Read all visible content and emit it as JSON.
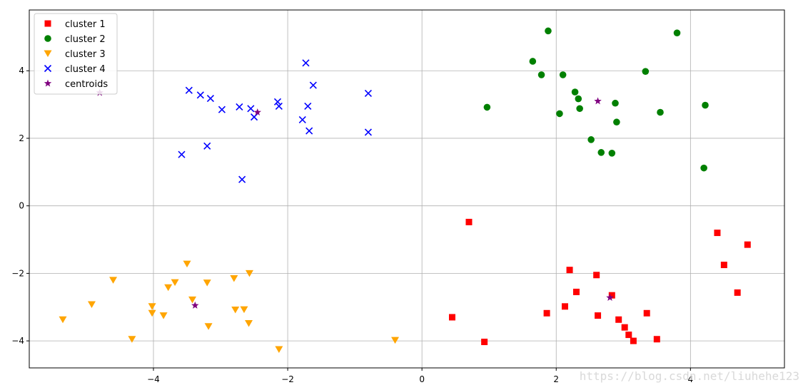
{
  "chart_data": {
    "type": "scatter",
    "xlim": [
      -5.85,
      5.4
    ],
    "ylim": [
      -4.8,
      5.8
    ],
    "xticks": [
      -4,
      -2,
      0,
      2,
      4
    ],
    "yticks": [
      -4,
      -2,
      0,
      2,
      4
    ],
    "x_tick_labels": [
      "−4",
      "−2",
      "0",
      "2",
      "4"
    ],
    "y_tick_labels": [
      "−4",
      "−2",
      "0",
      "2",
      "4"
    ],
    "grid": true,
    "legend_position": "top-left",
    "series": [
      {
        "name": "cluster 1",
        "marker": "square",
        "color": "#ff0000",
        "points": [
          [
            0.45,
            -3.3
          ],
          [
            0.7,
            -0.48
          ],
          [
            0.93,
            -4.03
          ],
          [
            1.86,
            -3.18
          ],
          [
            2.13,
            -2.98
          ],
          [
            2.2,
            -1.9
          ],
          [
            2.3,
            -2.55
          ],
          [
            2.6,
            -2.05
          ],
          [
            2.62,
            -3.25
          ],
          [
            2.83,
            -2.65
          ],
          [
            2.93,
            -3.37
          ],
          [
            3.02,
            -3.6
          ],
          [
            3.08,
            -3.82
          ],
          [
            3.15,
            -4.0
          ],
          [
            3.35,
            -3.18
          ],
          [
            3.5,
            -3.95
          ],
          [
            4.4,
            -0.8
          ],
          [
            4.5,
            -1.75
          ],
          [
            4.7,
            -2.57
          ],
          [
            4.85,
            -1.15
          ]
        ]
      },
      {
        "name": "cluster 2",
        "marker": "circle",
        "color": "#008000",
        "points": [
          [
            0.97,
            2.92
          ],
          [
            1.65,
            4.28
          ],
          [
            1.78,
            3.88
          ],
          [
            1.88,
            5.18
          ],
          [
            2.05,
            2.73
          ],
          [
            2.1,
            3.88
          ],
          [
            2.28,
            3.37
          ],
          [
            2.33,
            3.17
          ],
          [
            2.35,
            2.88
          ],
          [
            2.52,
            1.96
          ],
          [
            2.67,
            1.58
          ],
          [
            2.83,
            1.56
          ],
          [
            2.88,
            3.04
          ],
          [
            2.9,
            2.48
          ],
          [
            3.33,
            3.98
          ],
          [
            3.55,
            2.77
          ],
          [
            3.8,
            5.12
          ],
          [
            4.2,
            1.12
          ],
          [
            4.22,
            2.98
          ]
        ]
      },
      {
        "name": "cluster 3",
        "marker": "triangle",
        "color": "#ffa500",
        "points": [
          [
            -5.35,
            -3.37
          ],
          [
            -4.92,
            -2.92
          ],
          [
            -4.6,
            -2.2
          ],
          [
            -4.32,
            -3.95
          ],
          [
            -4.02,
            -2.98
          ],
          [
            -4.02,
            -3.18
          ],
          [
            -3.85,
            -3.25
          ],
          [
            -3.78,
            -2.42
          ],
          [
            -3.68,
            -2.27
          ],
          [
            -3.5,
            -1.72
          ],
          [
            -3.42,
            -2.78
          ],
          [
            -3.2,
            -2.28
          ],
          [
            -3.18,
            -3.57
          ],
          [
            -2.8,
            -2.15
          ],
          [
            -2.78,
            -3.08
          ],
          [
            -2.65,
            -3.07
          ],
          [
            -2.58,
            -3.48
          ],
          [
            -2.57,
            -2.0
          ],
          [
            -2.13,
            -4.25
          ],
          [
            -0.4,
            -3.98
          ]
        ]
      },
      {
        "name": "cluster 4",
        "marker": "x",
        "color": "#0000ff",
        "points": [
          [
            -3.58,
            1.52
          ],
          [
            -3.47,
            3.42
          ],
          [
            -3.3,
            3.28
          ],
          [
            -3.2,
            1.77
          ],
          [
            -3.15,
            3.18
          ],
          [
            -2.98,
            2.85
          ],
          [
            -2.72,
            2.93
          ],
          [
            -2.68,
            0.78
          ],
          [
            -2.55,
            2.88
          ],
          [
            -2.5,
            2.63
          ],
          [
            -2.15,
            3.08
          ],
          [
            -2.13,
            2.95
          ],
          [
            -1.78,
            2.55
          ],
          [
            -1.73,
            4.23
          ],
          [
            -1.7,
            2.95
          ],
          [
            -1.68,
            2.22
          ],
          [
            -1.62,
            3.57
          ],
          [
            -0.8,
            3.33
          ],
          [
            -0.8,
            2.18
          ]
        ]
      },
      {
        "name": "centroids",
        "marker": "star",
        "color": "#800080",
        "points": [
          [
            -4.8,
            3.35
          ],
          [
            -3.38,
            -2.95
          ],
          [
            -2.45,
            2.77
          ],
          [
            2.62,
            3.1
          ],
          [
            2.8,
            -2.72
          ]
        ]
      }
    ]
  },
  "watermark": "https://blog.csdn.net/liuhehe123"
}
